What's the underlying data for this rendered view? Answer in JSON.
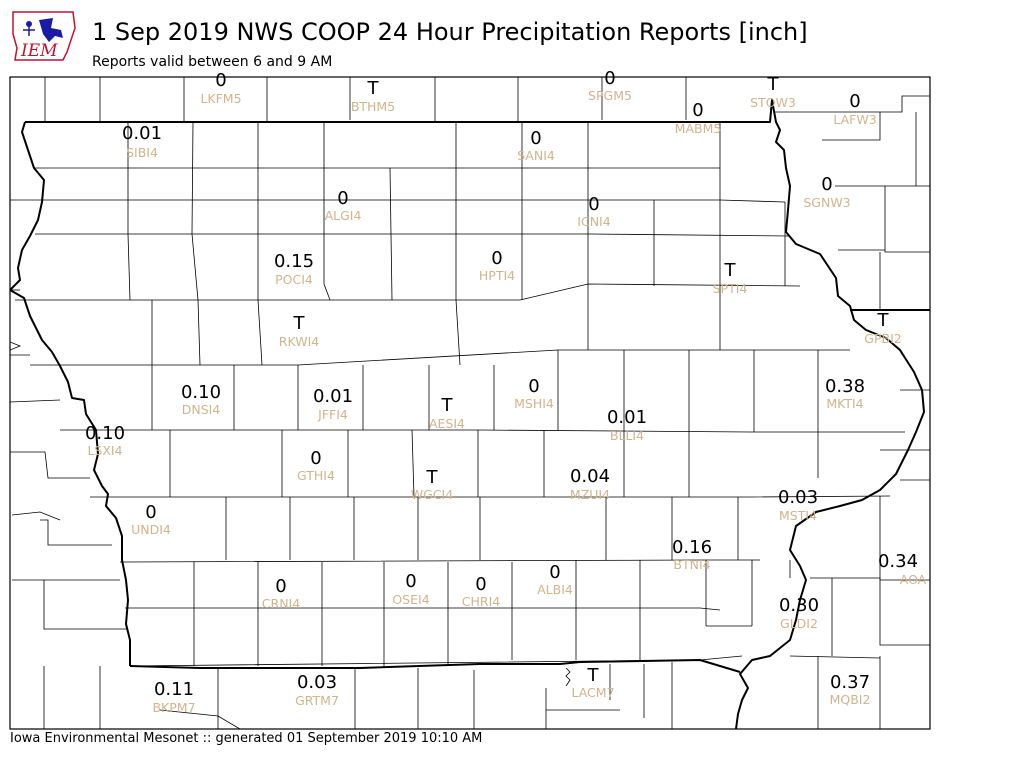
{
  "header": {
    "logo_text": "IEM",
    "title": "1 Sep 2019 NWS COOP 24 Hour Precipitation Reports [inch]",
    "subtitle": "Reports valid between 6 and 9 AM"
  },
  "footer": "Iowa Environmental Mesonet :: generated 01 September 2019 10:10 AM",
  "colors": {
    "value_text": "#000000",
    "station_id": "#d2b48c",
    "logo_red": "#c8102e",
    "logo_blue": "#1a1aa6"
  },
  "stations": [
    {
      "id": "LKFM5",
      "value": "0"
    },
    {
      "id": "BTHM5",
      "value": "T"
    },
    {
      "id": "SPGM5",
      "value": "0"
    },
    {
      "id": "STOW3",
      "value": "T"
    },
    {
      "id": "MABM5",
      "value": "0"
    },
    {
      "id": "LAFW3",
      "value": "0"
    },
    {
      "id": "SIBI4",
      "value": "0.01"
    },
    {
      "id": "SANI4",
      "value": "0"
    },
    {
      "id": "ALGI4",
      "value": "0"
    },
    {
      "id": "ICNI4",
      "value": "0"
    },
    {
      "id": "SGNW3",
      "value": "0"
    },
    {
      "id": "POCI4",
      "value": "0.15"
    },
    {
      "id": "HPTI4",
      "value": "0"
    },
    {
      "id": "SPTI4",
      "value": "T"
    },
    {
      "id": "RKWI4",
      "value": "T"
    },
    {
      "id": "GPBI2",
      "value": "T"
    },
    {
      "id": "DNSI4",
      "value": "0.10"
    },
    {
      "id": "JFFI4",
      "value": "0.01"
    },
    {
      "id": "AESI4",
      "value": "T"
    },
    {
      "id": "MSHI4",
      "value": "0"
    },
    {
      "id": "MKTI4",
      "value": "0.38"
    },
    {
      "id": "BLLI4",
      "value": "0.01"
    },
    {
      "id": "LSXI4",
      "value": "0.10"
    },
    {
      "id": "GTHI4",
      "value": "0"
    },
    {
      "id": "WGCI4",
      "value": "T"
    },
    {
      "id": "MZUI4",
      "value": "0.04"
    },
    {
      "id": "MSTI4",
      "value": "0.03"
    },
    {
      "id": "UNDI4",
      "value": "0"
    },
    {
      "id": "BTNI4",
      "value": "0.16"
    },
    {
      "id": "AOA",
      "value": "0.34"
    },
    {
      "id": "CRNI4",
      "value": "0"
    },
    {
      "id": "OSEI4",
      "value": "0"
    },
    {
      "id": "CHRI4",
      "value": "0"
    },
    {
      "id": "ALBI4",
      "value": "0"
    },
    {
      "id": "GLDI2",
      "value": "0.30"
    },
    {
      "id": "BKPM7",
      "value": "0.11"
    },
    {
      "id": "GRTM7",
      "value": "0.03"
    },
    {
      "id": "LACM7",
      "value": "T"
    },
    {
      "id": "MQBI2",
      "value": "0.37"
    }
  ]
}
